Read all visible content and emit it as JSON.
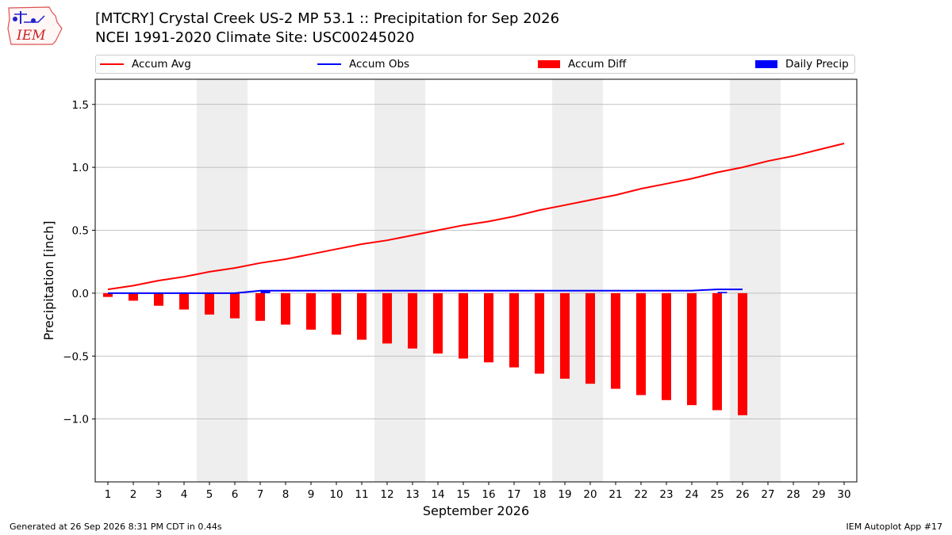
{
  "title_line1": "[MTCRY] Crystal Creek US-2 MP 53.1  :: Precipitation for Sep 2026",
  "title_line2": "NCEI 1991-2020 Climate Site: USC00245020",
  "logo_text": "IEM",
  "footer": {
    "generated": "Generated at 26 Sep 2026 8:31 PM CDT in 0.44s",
    "app": "IEM Autoplot App #17"
  },
  "colors": {
    "accum_avg": "#ff0000",
    "accum_obs": "#0000ff",
    "accum_diff": "#ff0000",
    "daily_precip": "#0000ff",
    "weekend_shade": "#eeeeee",
    "grid": "#b0b0b0"
  },
  "chart_data": {
    "type": "bar",
    "title": "[MTCRY] Crystal Creek US-2 MP 53.1  :: Precipitation for Sep 2026",
    "subtitle": "NCEI 1991-2020 Climate Site: USC00245020",
    "xlabel": "September 2026",
    "ylabel": "Precipitation [inch]",
    "xlim": [
      0.5,
      30.5
    ],
    "ylim": [
      -1.5,
      1.7
    ],
    "y_ticks": [
      -1.0,
      -0.5,
      0.0,
      0.5,
      1.0,
      1.5
    ],
    "y_tick_labels": [
      "−1.0",
      "−0.5",
      "0.0",
      "0.5",
      "1.0",
      "1.5"
    ],
    "grid": "y",
    "legend_position": "top",
    "legend": [
      "Accum Avg",
      "Accum Obs",
      "Accum Diff",
      "Daily Precip"
    ],
    "x": [
      1,
      2,
      3,
      4,
      5,
      6,
      7,
      8,
      9,
      10,
      11,
      12,
      13,
      14,
      15,
      16,
      17,
      18,
      19,
      20,
      21,
      22,
      23,
      24,
      25,
      26,
      27,
      28,
      29,
      30
    ],
    "shaded_weekend_days": [
      5,
      6,
      12,
      13,
      19,
      20,
      26,
      27
    ],
    "series": [
      {
        "name": "Accum Avg",
        "type": "line",
        "values": [
          0.03,
          0.06,
          0.1,
          0.13,
          0.17,
          0.2,
          0.24,
          0.27,
          0.31,
          0.35,
          0.39,
          0.42,
          0.46,
          0.5,
          0.54,
          0.57,
          0.61,
          0.66,
          0.7,
          0.74,
          0.78,
          0.83,
          0.87,
          0.91,
          0.96,
          1.0,
          1.05,
          1.09,
          1.14,
          1.19
        ]
      },
      {
        "name": "Accum Obs",
        "type": "line",
        "x": [
          1,
          2,
          3,
          4,
          5,
          6,
          7,
          8,
          9,
          10,
          11,
          12,
          13,
          14,
          15,
          16,
          17,
          18,
          19,
          20,
          21,
          22,
          23,
          24,
          25,
          26
        ],
        "values": [
          0.0,
          0.0,
          0.0,
          0.0,
          0.0,
          0.0,
          0.02,
          0.02,
          0.02,
          0.02,
          0.02,
          0.02,
          0.02,
          0.02,
          0.02,
          0.02,
          0.02,
          0.02,
          0.02,
          0.02,
          0.02,
          0.02,
          0.02,
          0.02,
          0.03,
          0.03
        ]
      },
      {
        "name": "Accum Diff",
        "type": "bar",
        "x": [
          1,
          2,
          3,
          4,
          5,
          6,
          7,
          8,
          9,
          10,
          11,
          12,
          13,
          14,
          15,
          16,
          17,
          18,
          19,
          20,
          21,
          22,
          23,
          24,
          25,
          26
        ],
        "values": [
          -0.03,
          -0.06,
          -0.1,
          -0.13,
          -0.17,
          -0.2,
          -0.22,
          -0.25,
          -0.29,
          -0.33,
          -0.37,
          -0.4,
          -0.44,
          -0.48,
          -0.52,
          -0.55,
          -0.59,
          -0.64,
          -0.68,
          -0.72,
          -0.76,
          -0.81,
          -0.85,
          -0.89,
          -0.93,
          -0.97
        ]
      },
      {
        "name": "Daily Precip",
        "type": "bar",
        "x": [
          1,
          2,
          3,
          4,
          5,
          6,
          7,
          8,
          9,
          10,
          11,
          12,
          13,
          14,
          15,
          16,
          17,
          18,
          19,
          20,
          21,
          22,
          23,
          24,
          25,
          26
        ],
        "values": [
          0,
          0,
          0,
          0,
          0,
          0,
          0.02,
          0,
          0,
          0,
          0,
          0,
          0,
          0,
          0,
          0,
          0,
          0,
          0,
          0,
          0,
          0,
          0,
          0,
          0.01,
          0
        ]
      }
    ]
  }
}
